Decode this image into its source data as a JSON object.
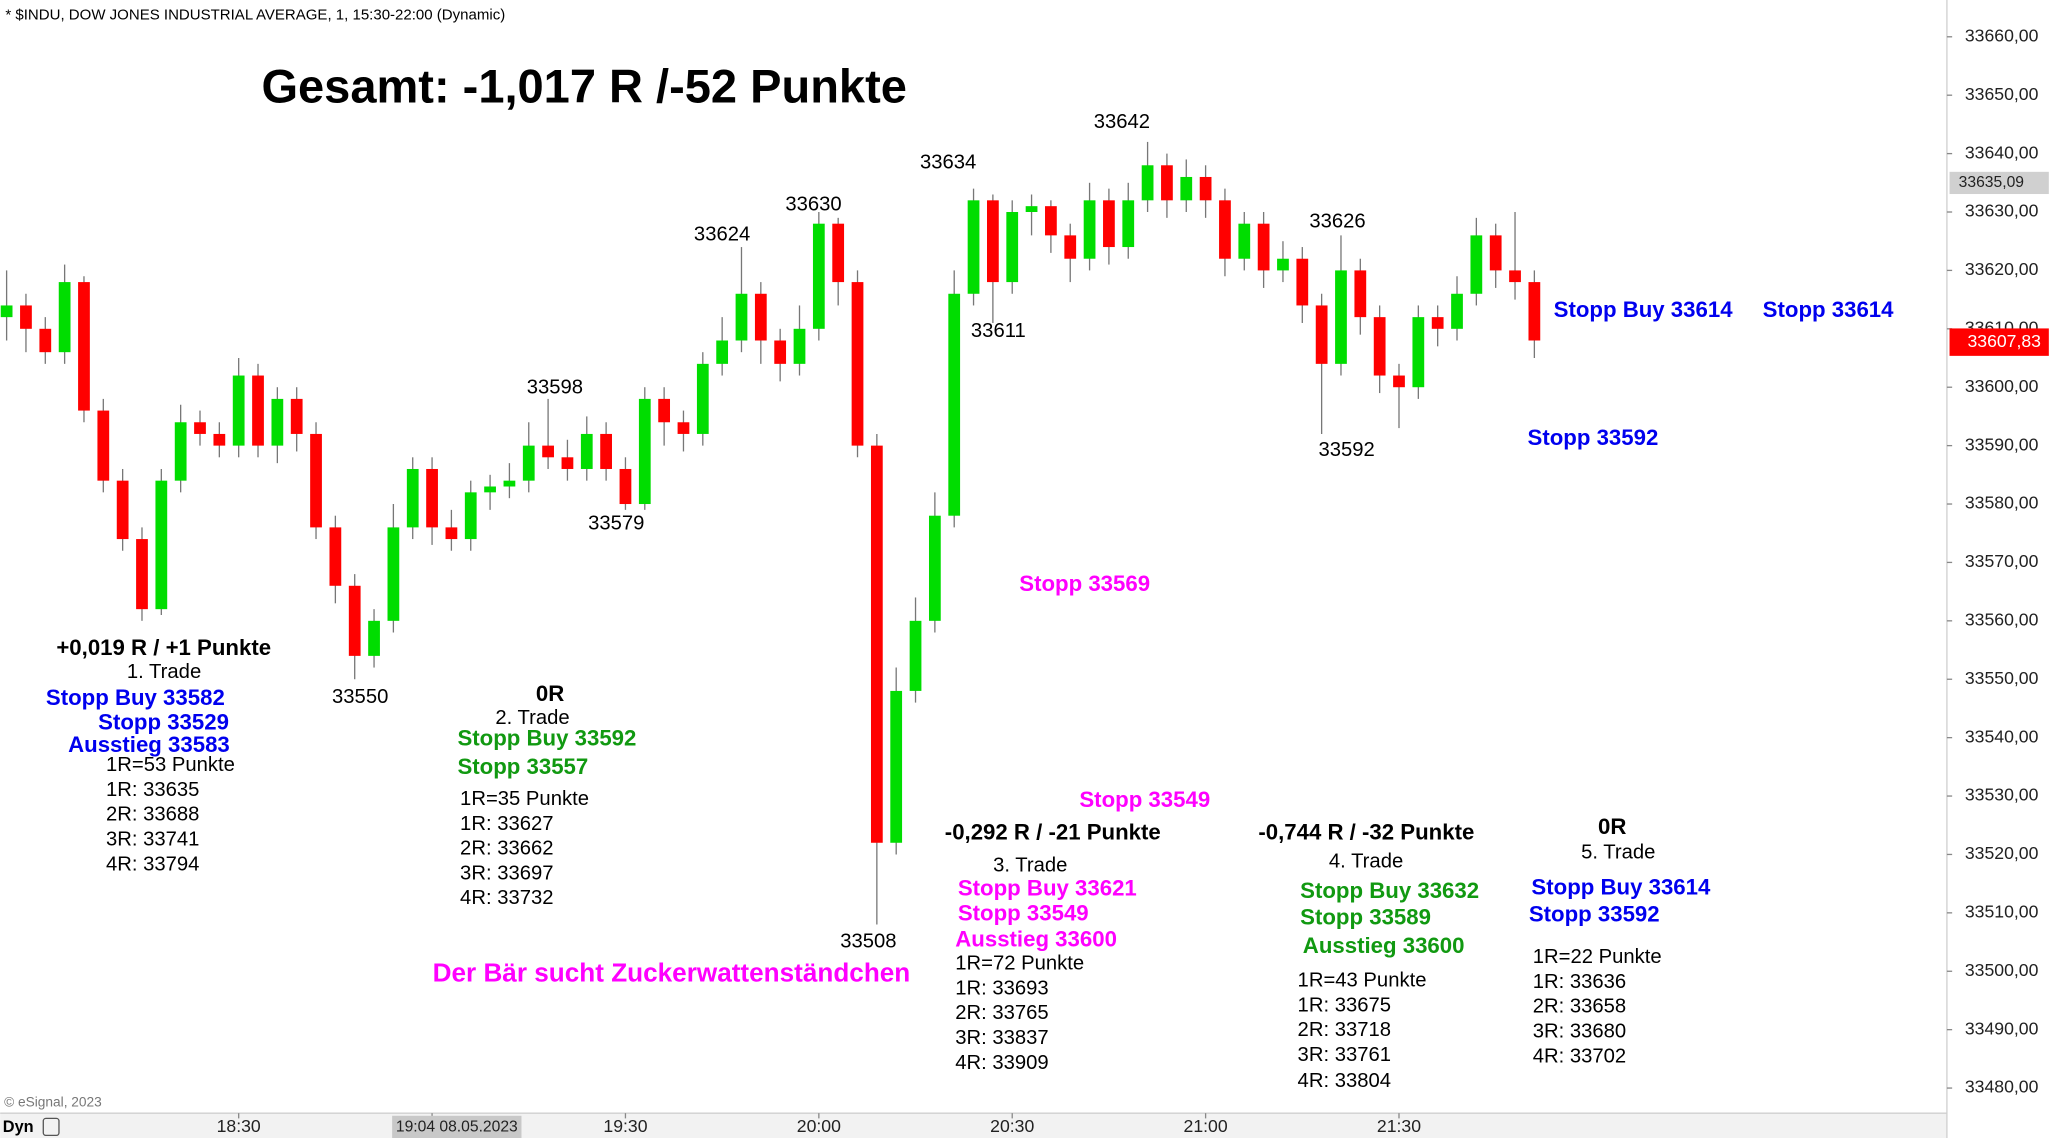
{
  "chart_data": {
    "type": "candlestick",
    "header": "* $INDU, DOW JONES INDUSTRIAL AVERAGE, 1, 15:30-22:00 (Dynamic)",
    "title": "Gesamt: -1,017 R /-52 Punkte",
    "copyright": "© eSignal, 2023",
    "mode_label": "Dyn",
    "up_color": "#00dd00",
    "down_color": "#ff0000",
    "wick_color": "#777777",
    "x": [
      "17:54",
      "17:57",
      "18:00",
      "18:03",
      "18:06",
      "18:09",
      "18:12",
      "18:15",
      "18:18",
      "18:21",
      "18:24",
      "18:27",
      "18:30",
      "18:33",
      "18:36",
      "18:39",
      "18:42",
      "18:45",
      "18:48",
      "18:51",
      "18:54",
      "18:57",
      "19:00",
      "19:03",
      "19:06",
      "19:09",
      "19:12",
      "19:15",
      "19:18",
      "19:21",
      "19:24",
      "19:27",
      "19:30",
      "19:33",
      "19:36",
      "19:39",
      "19:42",
      "19:45",
      "19:48",
      "19:51",
      "19:54",
      "19:57",
      "20:00",
      "20:03",
      "20:06",
      "20:09",
      "20:12",
      "20:15",
      "20:18",
      "20:21",
      "20:24",
      "20:27",
      "20:30",
      "20:33",
      "20:36",
      "20:39",
      "20:42",
      "20:45",
      "20:48",
      "20:51",
      "20:54",
      "20:57",
      "21:00",
      "21:03",
      "21:06",
      "21:09",
      "21:12",
      "21:15",
      "21:18",
      "21:21",
      "21:24",
      "21:27",
      "21:30",
      "21:33",
      "21:36",
      "21:39",
      "21:42",
      "21:45",
      "21:48",
      "21:51"
    ],
    "open": [
      33612,
      33614,
      33610,
      33606,
      33618,
      33596,
      33584,
      33574,
      33562,
      33584,
      33594,
      33592,
      33590,
      33602,
      33590,
      33598,
      33592,
      33576,
      33566,
      33554,
      33560,
      33576,
      33586,
      33576,
      33574,
      33582,
      33583,
      33584,
      33590,
      33588,
      33586,
      33592,
      33586,
      33580,
      33598,
      33594,
      33592,
      33604,
      33608,
      33616,
      33608,
      33604,
      33610,
      33628,
      33618,
      33590,
      33522,
      33548,
      33560,
      33578,
      33616,
      33632,
      33618,
      33630,
      33631,
      33626,
      33622,
      33632,
      33624,
      33632,
      33638,
      33632,
      33636,
      33632,
      33622,
      33628,
      33620,
      33622,
      33614,
      33604,
      33620,
      33612,
      33602,
      33600,
      33612,
      33610,
      33616,
      33626,
      33620,
      33618
    ],
    "high": [
      33620,
      33616,
      33612,
      33621,
      33619,
      33598,
      33586,
      33576,
      33586,
      33597,
      33596,
      33594,
      33605,
      33604,
      33600,
      33600,
      33594,
      33578,
      33568,
      33562,
      33580,
      33588,
      33588,
      33579,
      33584,
      33585,
      33587,
      33594,
      33598,
      33591,
      33595,
      33594,
      33588,
      33600,
      33600,
      33596,
      33606,
      33612,
      33624,
      33618,
      33610,
      33614,
      33630,
      33629,
      33620,
      33592,
      33552,
      33564,
      33582,
      33620,
      33634,
      33633,
      33632,
      33633,
      33632,
      33628,
      33635,
      33634,
      33635,
      33642,
      33640,
      33639,
      33638,
      33634,
      33630,
      33630,
      33625,
      33624,
      33616,
      33626,
      33622,
      33614,
      33604,
      33614,
      33614,
      33619,
      33629,
      33628,
      33630,
      33620
    ],
    "low": [
      33608,
      33606,
      33604,
      33604,
      33594,
      33582,
      33572,
      33560,
      33561,
      33582,
      33590,
      33588,
      33588,
      33588,
      33587,
      33589,
      33574,
      33563,
      33550,
      33552,
      33558,
      33574,
      33573,
      33572,
      33572,
      33579,
      33581,
      33582,
      33586,
      33584,
      33584,
      33584,
      33579,
      33579,
      33590,
      33589,
      33590,
      33602,
      33606,
      33604,
      33601,
      33602,
      33608,
      33614,
      33588,
      33508,
      33520,
      33546,
      33558,
      33576,
      33614,
      33611,
      33616,
      33626,
      33623,
      33618,
      33620,
      33621,
      33622,
      33630,
      33629,
      33630,
      33629,
      33619,
      33620,
      33617,
      33618,
      33611,
      33592,
      33602,
      33609,
      33599,
      33593,
      33598,
      33607,
      33608,
      33614,
      33617,
      33615,
      33605
    ],
    "close": [
      33614,
      33610,
      33606,
      33618,
      33596,
      33584,
      33574,
      33562,
      33584,
      33594,
      33592,
      33590,
      33602,
      33590,
      33598,
      33592,
      33576,
      33566,
      33554,
      33560,
      33576,
      33586,
      33576,
      33574,
      33582,
      33583,
      33584,
      33590,
      33588,
      33586,
      33592,
      33586,
      33580,
      33598,
      33594,
      33592,
      33604,
      33608,
      33616,
      33608,
      33604,
      33610,
      33628,
      33618,
      33590,
      33522,
      33548,
      33560,
      33578,
      33616,
      33632,
      33618,
      33630,
      33631,
      33626,
      33622,
      33632,
      33624,
      33632,
      33638,
      33632,
      33636,
      33632,
      33622,
      33628,
      33620,
      33622,
      33614,
      33604,
      33620,
      33612,
      33602,
      33600,
      33612,
      33610,
      33616,
      33626,
      33620,
      33618,
      33608
    ],
    "xlim": [
      "17:53",
      "22:55"
    ],
    "xticks": [
      "18:30",
      "19:00",
      "19:30",
      "20:00",
      "20:30",
      "21:00",
      "21:30"
    ],
    "ylim": [
      33475.7,
      33666.3
    ],
    "yticks": [
      {
        "value": 33660,
        "label": "33660,00"
      },
      {
        "value": 33650,
        "label": "33650,00"
      },
      {
        "value": 33640,
        "label": "33640,00"
      },
      {
        "value": 33630,
        "label": "33630,00"
      },
      {
        "value": 33620,
        "label": "33620,00"
      },
      {
        "value": 33610,
        "label": "33610,00"
      },
      {
        "value": 33600,
        "label": "33600,00"
      },
      {
        "value": 33590,
        "label": "33590,00"
      },
      {
        "value": 33580,
        "label": "33580,00"
      },
      {
        "value": 33570,
        "label": "33570,00"
      },
      {
        "value": 33560,
        "label": "33560,00"
      },
      {
        "value": 33550,
        "label": "33550,00"
      },
      {
        "value": 33540,
        "label": "33540,00"
      },
      {
        "value": 33530,
        "label": "33530,00"
      },
      {
        "value": 33520,
        "label": "33520,00"
      },
      {
        "value": 33510,
        "label": "33510,00"
      },
      {
        "value": 33500,
        "label": "33500,00"
      },
      {
        "value": 33490,
        "label": "33490,00"
      },
      {
        "value": 33480,
        "label": "33480,00"
      }
    ],
    "last_price": {
      "value": 33607.83,
      "label": "33607,83",
      "color": "#ff0000"
    },
    "crosshair": {
      "price": 33635.09,
      "price_label": "33635,09",
      "time_label": "19:04 08.05.2023"
    },
    "annotations": [
      {
        "text": "+0,019 R / +1 Punkte"
      },
      {
        "text": "1. Trade"
      },
      {
        "text": "Stopp Buy 33582",
        "color": "#0000ee"
      },
      {
        "text": "Stopp 33529",
        "color": "#0000ee"
      },
      {
        "text": "Ausstieg 33583",
        "color": "#0000ee"
      },
      {
        "text": "1R=53 Punkte"
      },
      {
        "text": "1R: 33635"
      },
      {
        "text": "2R: 33688"
      },
      {
        "text": "3R: 33741"
      },
      {
        "text": "4R: 33794"
      },
      {
        "text": "0R"
      },
      {
        "text": "2. Trade"
      },
      {
        "text": "Stopp Buy 33592",
        "color": "#119911"
      },
      {
        "text": "Stopp 33557",
        "color": "#119911"
      },
      {
        "text": "1R=35 Punkte"
      },
      {
        "text": "1R: 33627"
      },
      {
        "text": "2R: 33662"
      },
      {
        "text": "3R: 33697"
      },
      {
        "text": "4R: 33732"
      },
      {
        "text": "Der Bär sucht Zuckerwattenständchen",
        "color": "#ff00ff"
      },
      {
        "text": "Stopp 33569",
        "color": "#ff00ff"
      },
      {
        "text": "Stopp 33549",
        "color": "#ff00ff"
      },
      {
        "text": "-0,292 R / -21 Punkte"
      },
      {
        "text": "3. Trade"
      },
      {
        "text": "Stopp Buy 33621",
        "color": "#ff00ff"
      },
      {
        "text": "Stopp 33549",
        "color": "#ff00ff"
      },
      {
        "text": "Ausstieg 33600",
        "color": "#ff00ff"
      },
      {
        "text": "1R=72 Punkte"
      },
      {
        "text": "1R: 33693"
      },
      {
        "text": "2R: 33765"
      },
      {
        "text": "3R: 33837"
      },
      {
        "text": "4R: 33909"
      },
      {
        "text": "-0,744 R / -32 Punkte"
      },
      {
        "text": "4. Trade"
      },
      {
        "text": "Stopp Buy 33632",
        "color": "#119911"
      },
      {
        "text": "Stopp 33589",
        "color": "#119911"
      },
      {
        "text": "Ausstieg 33600",
        "color": "#119911"
      },
      {
        "text": "1R=43 Punkte"
      },
      {
        "text": "1R: 33675"
      },
      {
        "text": "2R: 33718"
      },
      {
        "text": "3R: 33761"
      },
      {
        "text": "4R: 33804"
      },
      {
        "text": "0R"
      },
      {
        "text": "5. Trade"
      },
      {
        "text": "Stopp Buy 33614",
        "color": "#0000ee"
      },
      {
        "text": "Stopp 33592",
        "color": "#0000ee"
      },
      {
        "text": "1R=22 Punkte"
      },
      {
        "text": "1R: 33636"
      },
      {
        "text": "2R: 33658"
      },
      {
        "text": "3R: 33680"
      },
      {
        "text": "4R: 33702"
      },
      {
        "text": "Stopp Buy 33614",
        "color": "#0000ee"
      },
      {
        "text": "Stopp 33614",
        "color": "#0000ee"
      },
      {
        "text": "Stopp 33592",
        "color": "#0000ee"
      },
      {
        "text": "33550"
      },
      {
        "text": "33598"
      },
      {
        "text": "33579"
      },
      {
        "text": "33624"
      },
      {
        "text": "33630"
      },
      {
        "text": "33508"
      },
      {
        "text": "33634"
      },
      {
        "text": "33611"
      },
      {
        "text": "33642"
      },
      {
        "text": "33626"
      },
      {
        "text": "33592"
      }
    ]
  }
}
